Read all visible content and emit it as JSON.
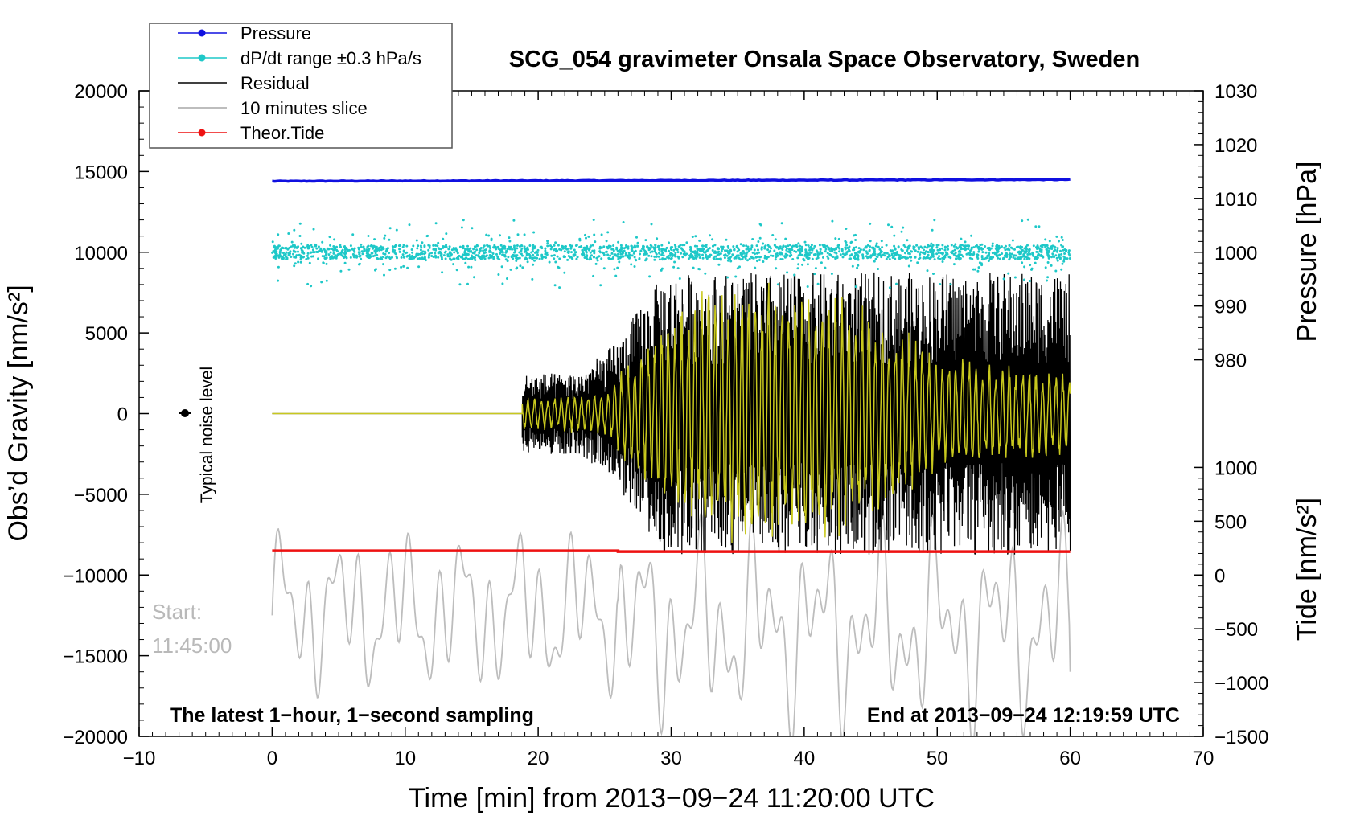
{
  "colors": {
    "pressure": "#1010e0",
    "dpdt": "#1ec8c8",
    "residual": "#000000",
    "slice": "#bdbdbd",
    "tide": "#ee1111",
    "filtered": "#c8c81e"
  },
  "chart_data": {
    "type": "line",
    "title": "SCG_054 gravimeter Onsala Space Observatory, Sweden",
    "xlabel": "Time [min] from 2013−09−24 11:20:00 UTC",
    "ylabel_left": "Obs’d Gravity [nm/s²]",
    "ylabel_right_top": "Pressure [hPa]",
    "ylabel_right_bottom": "Tide [nm/s²]",
    "xlim": [
      -10,
      70
    ],
    "ylim_left": [
      -20000,
      20000
    ],
    "ylim_pressure_mapping": {
      "hpa": [
        1030,
        980
      ],
      "gravity_equiv": [
        20000,
        3333
      ]
    },
    "ylim_tide": [
      -1500,
      1000
    ],
    "x_ticks": [
      {
        "v": -10,
        "label": "−10"
      },
      {
        "v": 0,
        "label": "0"
      },
      {
        "v": 10,
        "label": "10"
      },
      {
        "v": 20,
        "label": "20"
      },
      {
        "v": 30,
        "label": "30"
      },
      {
        "v": 40,
        "label": "40"
      },
      {
        "v": 50,
        "label": "50"
      },
      {
        "v": 60,
        "label": "60"
      },
      {
        "v": 70,
        "label": "70"
      }
    ],
    "y_left_ticks": [
      {
        "v": 20000,
        "label": "20000"
      },
      {
        "v": 15000,
        "label": "15000"
      },
      {
        "v": 10000,
        "label": "10000"
      },
      {
        "v": 5000,
        "label": "5000"
      },
      {
        "v": 0,
        "label": "0"
      },
      {
        "v": -5000,
        "label": "−5000"
      },
      {
        "v": -10000,
        "label": "−10000"
      },
      {
        "v": -15000,
        "label": "−15000"
      },
      {
        "v": -20000,
        "label": "−20000"
      }
    ],
    "y_pressure_ticks": [
      {
        "v": 1030,
        "label": "1030"
      },
      {
        "v": 1020,
        "label": "1020"
      },
      {
        "v": 1010,
        "label": "1010"
      },
      {
        "v": 1000,
        "label": "1000"
      },
      {
        "v": 990,
        "label": "990"
      },
      {
        "v": 980,
        "label": "980"
      }
    ],
    "y_tide_ticks": [
      {
        "v": 1000,
        "label": "1000"
      },
      {
        "v": 500,
        "label": "500"
      },
      {
        "v": 0,
        "label": "0"
      },
      {
        "v": -500,
        "label": "−500"
      },
      {
        "v": -1000,
        "label": "−1000"
      },
      {
        "v": -1500,
        "label": "−1500"
      }
    ],
    "legend": [
      {
        "key": "pressure",
        "label": "Pressure",
        "marker": true
      },
      {
        "key": "dpdt",
        "label": "dP/dt range ±0.3 hPa/s",
        "marker": true
      },
      {
        "key": "residual",
        "label": "Residual",
        "marker": false
      },
      {
        "key": "slice",
        "label": "10 minutes slice",
        "marker": false
      },
      {
        "key": "tide",
        "label": "Theor.Tide",
        "marker": true
      }
    ],
    "series": [
      {
        "name": "Pressure",
        "axis": "left",
        "x_range": [
          0,
          60
        ],
        "start_value": 14400,
        "end_value": 14500
      },
      {
        "name": "dP/dt range ±0.3 hPa/s",
        "axis": "left",
        "x_range": [
          0,
          60
        ],
        "center_value": 10000,
        "scatter_range": [
          7000,
          12800
        ]
      },
      {
        "name": "Theor.Tide",
        "axis": "left",
        "x_range": [
          0,
          60
        ],
        "start_value": -8500,
        "end_value": -8550
      },
      {
        "name": "Residual",
        "axis": "left",
        "x_range": [
          0,
          60
        ],
        "quiet_until": 18.8,
        "quiet_value": 0,
        "envelope": [
          {
            "x": 18.8,
            "amp": 2500
          },
          {
            "x": 23,
            "amp": 2500
          },
          {
            "x": 26,
            "amp": 4500
          },
          {
            "x": 27.5,
            "amp": 6500
          },
          {
            "x": 29.5,
            "amp": 8700
          },
          {
            "x": 60,
            "amp": 8800
          }
        ],
        "min_value": -9700,
        "max_value": 8900
      },
      {
        "name": "Filtered residual",
        "axis": "left",
        "x_range": [
          0,
          60
        ],
        "quiet_until": 18.8,
        "quiet_value": 0,
        "envelope": [
          {
            "x": 18.8,
            "amp": 900
          },
          {
            "x": 25,
            "amp": 1200
          },
          {
            "x": 26.5,
            "amp": 3000
          },
          {
            "x": 29,
            "amp": 5000
          },
          {
            "x": 33,
            "amp": 8000
          },
          {
            "x": 42,
            "amp": 8000
          },
          {
            "x": 50,
            "amp": 3500
          },
          {
            "x": 60,
            "amp": 2500
          }
        ]
      },
      {
        "name": "10 minutes slice",
        "axis": "left",
        "x_range": [
          0,
          60
        ],
        "start_value": -12500,
        "range_before_26": [
          -18500,
          -6000
        ],
        "range_after_26": [
          -21000,
          -5500
        ],
        "end_value": -16000
      }
    ],
    "annotations": {
      "typical_noise": "Typical noise level",
      "start_label": "Start:",
      "start_time": "11:45:00",
      "latest": "The latest 1−hour, 1−second sampling",
      "end": "End at 2013−09−24 12:19:59 UTC"
    }
  }
}
